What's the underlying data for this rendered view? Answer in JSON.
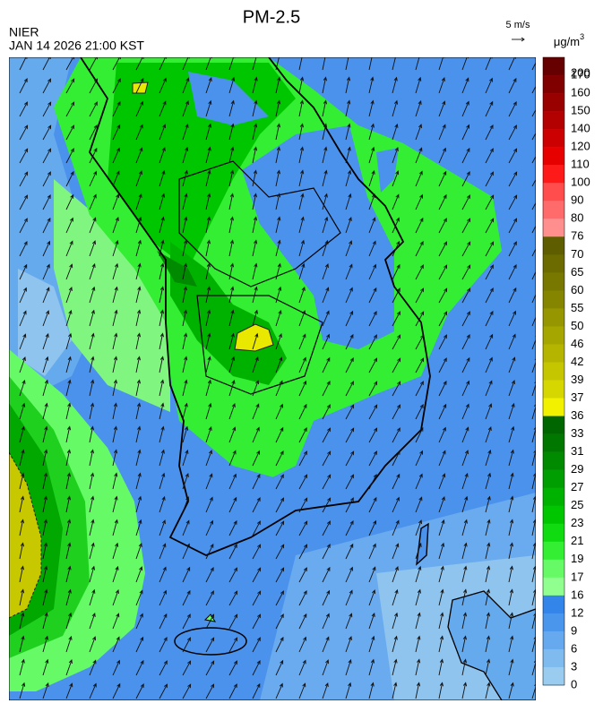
{
  "header": {
    "title": "PM-2.5",
    "source": "NIER",
    "datetime": "JAN 14 2026 21:00 KST"
  },
  "wind_scale": {
    "label": "5 m/s"
  },
  "legend": {
    "unit": "μg/m",
    "unit_superscript": "3",
    "labels": [
      200,
      170,
      160,
      150,
      140,
      120,
      110,
      100,
      90,
      80,
      76,
      70,
      65,
      60,
      55,
      50,
      46,
      42,
      39,
      37,
      36,
      33,
      31,
      29,
      27,
      25,
      23,
      21,
      19,
      17,
      16,
      12,
      9,
      6,
      3,
      0
    ],
    "colors": [
      "#660000",
      "#800000",
      "#990000",
      "#b30000",
      "#cc0000",
      "#e60000",
      "#ff1a1a",
      "#ff4d4d",
      "#ff6b6b",
      "#ff8f8f",
      "#5e5e00",
      "#6b6b00",
      "#787800",
      "#858500",
      "#969600",
      "#a6a600",
      "#b5b500",
      "#c6c600",
      "#d6d600",
      "#f2f200",
      "#006600",
      "#007800",
      "#008a00",
      "#009e00",
      "#00b200",
      "#00c600",
      "#10da10",
      "#33ee33",
      "#66fa66",
      "#90ff90",
      "#3385ea",
      "#4a96ec",
      "#66a9ee",
      "#80bbef",
      "#99ccee"
    ]
  }
}
